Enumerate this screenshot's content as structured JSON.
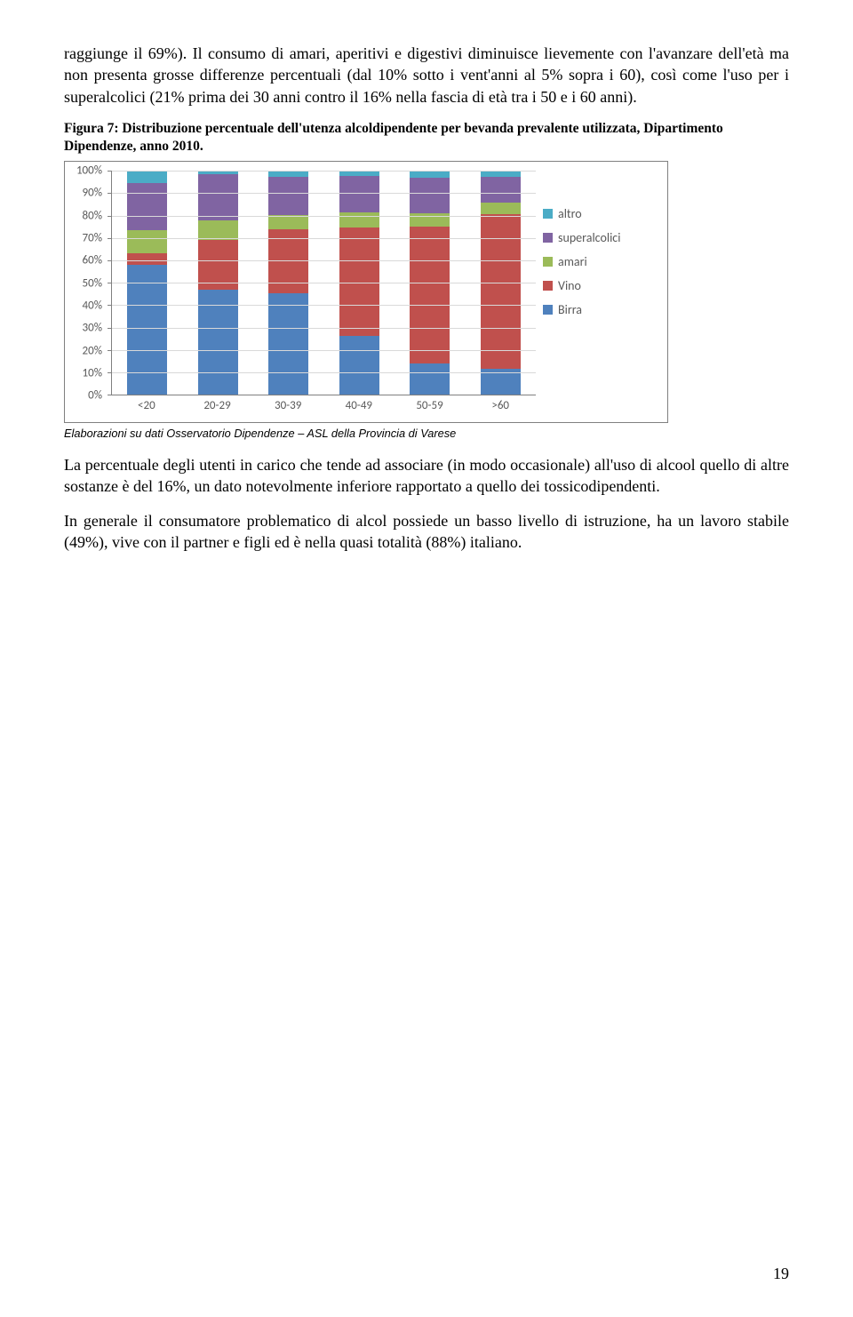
{
  "para1": "raggiunge il 69%). Il consumo di amari, aperitivi e digestivi diminuisce lievemente con l'avanzare dell'età ma non presenta grosse differenze percentuali (dal 10% sotto i vent'anni al 5% sopra i 60), così come l'uso per i superalcolici (21% prima dei 30 anni contro il 16% nella fascia di età tra i 50 e i 60 anni).",
  "figure_caption": "Figura 7: Distribuzione percentuale dell'utenza alcoldipendente per bevanda prevalente utilizzata, Dipartimento Dipendenze, anno 2010.",
  "chart": {
    "type": "stacked-bar",
    "categories": [
      "<20",
      "20-29",
      "30-39",
      "40-49",
      "50-59",
      ">60"
    ],
    "series_order": [
      "Birra",
      "Vino",
      "amari",
      "superalcolici",
      "altro"
    ],
    "legend_order": [
      "altro",
      "superalcolici",
      "amari",
      "Vino",
      "Birra"
    ],
    "colors": {
      "altro": "#4bacc6",
      "superalcolici": "#8064a2",
      "amari": "#9bbb59",
      "Vino": "#c0504d",
      "Birra": "#4f81bd"
    },
    "data": {
      "<20": {
        "Birra": 57.9,
        "Vino": 5.3,
        "amari": 10.5,
        "superalcolici": 21.1,
        "altro": 5.3
      },
      "20-29": {
        "Birra": 47.1,
        "Vino": 22.1,
        "amari": 8.8,
        "superalcolici": 20.6,
        "altro": 1.5
      },
      "30-39": {
        "Birra": 45.2,
        "Vino": 28.7,
        "amari": 6.4,
        "superalcolici": 17.0,
        "altro": 2.7
      },
      "40-49": {
        "Birra": 26.4,
        "Vino": 48.3,
        "amari": 6.9,
        "superalcolici": 16.1,
        "altro": 2.3
      },
      "50-59": {
        "Birra": 14.0,
        "Vino": 61.0,
        "amari": 6.0,
        "superalcolici": 16.0,
        "altro": 3.0
      },
      ">60": {
        "Birra": 11.7,
        "Vino": 68.8,
        "amari": 5.2,
        "superalcolici": 11.7,
        "altro": 2.6
      }
    },
    "y_ticks": [
      0,
      10,
      20,
      30,
      40,
      50,
      60,
      70,
      80,
      90,
      100
    ],
    "y_tick_labels": [
      "0%",
      "10%",
      "20%",
      "30%",
      "40%",
      "50%",
      "60%",
      "70%",
      "80%",
      "90%",
      "100%"
    ],
    "background_color": "#ffffff",
    "grid_color": "#d9d9d9",
    "axis_color": "#808080",
    "label_color": "#595959",
    "label_fontsize": 13
  },
  "source_note": "Elaborazioni su dati Osservatorio Dipendenze – ASL della Provincia di Varese",
  "para2": "La percentuale degli utenti in carico che tende ad associare (in modo occasionale) all'uso di alcool quello di altre sostanze è del 16%, un dato notevolmente inferiore rapportato a quello dei tossicodipendenti.",
  "para3": "In generale il consumatore problematico di alcol possiede un basso livello di istruzione, ha un lavoro stabile (49%), vive con il partner e figli ed è nella quasi totalità (88%) italiano.",
  "page_number": "19"
}
